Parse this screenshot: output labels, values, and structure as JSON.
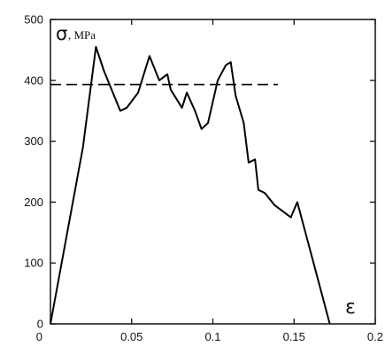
{
  "chart_data": {
    "type": "line",
    "ylabel_symbol": "σ",
    "ylabel_unit": ", MPa",
    "xlabel": "ε",
    "xlim": [
      0,
      0.2
    ],
    "ylim": [
      0,
      500
    ],
    "x_ticks": [
      "0",
      "0.05",
      "0.1",
      "0.15",
      "0.2"
    ],
    "y_ticks": [
      "0",
      "100",
      "200",
      "300",
      "400",
      "500"
    ],
    "grid": false,
    "series": [
      {
        "style": "solid",
        "color": "#000000",
        "x": [
          0,
          0.02,
          0.028,
          0.033,
          0.043,
          0.047,
          0.054,
          0.061,
          0.067,
          0.072,
          0.074,
          0.081,
          0.084,
          0.089,
          0.093,
          0.097,
          0.103,
          0.108,
          0.111,
          0.114,
          0.119,
          0.122,
          0.126,
          0.128,
          0.132,
          0.138,
          0.148,
          0.152,
          0.16,
          0.168,
          0.172
        ],
        "y": [
          0,
          290,
          455,
          415,
          350,
          355,
          380,
          440,
          400,
          410,
          385,
          355,
          380,
          350,
          320,
          330,
          400,
          425,
          430,
          375,
          330,
          265,
          270,
          220,
          215,
          195,
          175,
          200,
          120,
          40,
          0
        ]
      },
      {
        "style": "dashed",
        "color": "#000000",
        "x": [
          0,
          0.14
        ],
        "y": [
          393,
          393
        ]
      }
    ]
  }
}
